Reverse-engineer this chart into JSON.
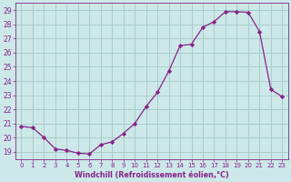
{
  "x": [
    0,
    1,
    2,
    3,
    4,
    5,
    6,
    7,
    8,
    9,
    10,
    11,
    12,
    13,
    14,
    15,
    16,
    17,
    18,
    19,
    20,
    21,
    22,
    23
  ],
  "y": [
    20.8,
    20.7,
    20.0,
    19.2,
    19.1,
    18.9,
    18.85,
    19.5,
    19.7,
    20.3,
    21.0,
    22.2,
    23.2,
    24.7,
    26.5,
    26.6,
    27.8,
    28.2,
    28.9,
    28.9,
    28.85,
    27.5,
    23.4,
    22.9
  ],
  "line_color": "#882288",
  "marker": "D",
  "marker_size": 2.2,
  "bg_color": "#cce8e8",
  "grid_color": "#aacccc",
  "xlabel": "Windchill (Refroidissement éolien,°C)",
  "ylabel_ticks": [
    19,
    20,
    21,
    22,
    23,
    24,
    25,
    26,
    27,
    28,
    29
  ],
  "xlim": [
    -0.5,
    23.5
  ],
  "ylim": [
    18.5,
    29.5
  ],
  "xtick_labels": [
    "0",
    "1",
    "2",
    "3",
    "4",
    "5",
    "6",
    "7",
    "8",
    "9",
    "10",
    "11",
    "12",
    "13",
    "14",
    "15",
    "16",
    "17",
    "18",
    "19",
    "20",
    "21",
    "22",
    "23"
  ],
  "axis_label_color": "#882288",
  "tick_color": "#882288"
}
